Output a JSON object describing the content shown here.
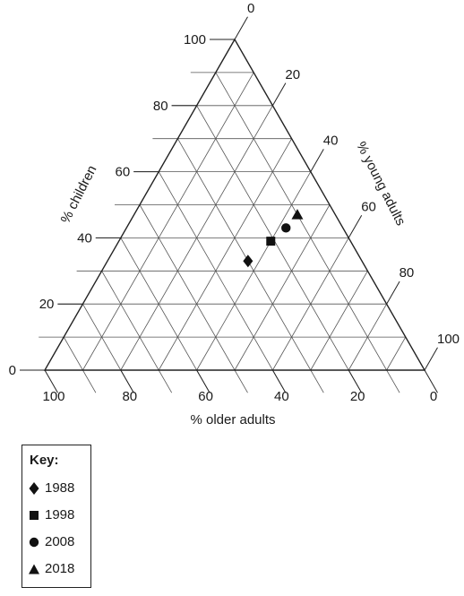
{
  "chart_data": {
    "type": "scatter",
    "subtype": "ternary",
    "axes": {
      "children": {
        "label": "% children",
        "ticks": [
          "0",
          "20",
          "40",
          "60",
          "80",
          "100"
        ]
      },
      "young_adults": {
        "label": "% young adults",
        "ticks": [
          "0",
          "20",
          "40",
          "60",
          "80",
          "100"
        ]
      },
      "older_adults": {
        "label": "% older adults",
        "ticks": [
          "100",
          "80",
          "60",
          "40",
          "20",
          "0"
        ]
      }
    },
    "grid": true,
    "grid_step": 10,
    "legend_position": "bottom-left",
    "points": [
      {
        "name": "1988",
        "marker": "diamond",
        "children": 33,
        "young_adults": 37,
        "older_adults": 30
      },
      {
        "name": "1998",
        "marker": "square",
        "children": 39,
        "young_adults": 40,
        "older_adults": 21
      },
      {
        "name": "2008",
        "marker": "circle",
        "children": 43,
        "young_adults": 42,
        "older_adults": 15
      },
      {
        "name": "2018",
        "marker": "triangle",
        "children": 47,
        "young_adults": 43,
        "older_adults": 10
      }
    ]
  },
  "key": {
    "title": "Key:",
    "items": [
      {
        "label": "1988",
        "marker": "diamond"
      },
      {
        "label": "1998",
        "marker": "square"
      },
      {
        "label": "2008",
        "marker": "circle"
      },
      {
        "label": "2018",
        "marker": "triangle"
      }
    ]
  }
}
